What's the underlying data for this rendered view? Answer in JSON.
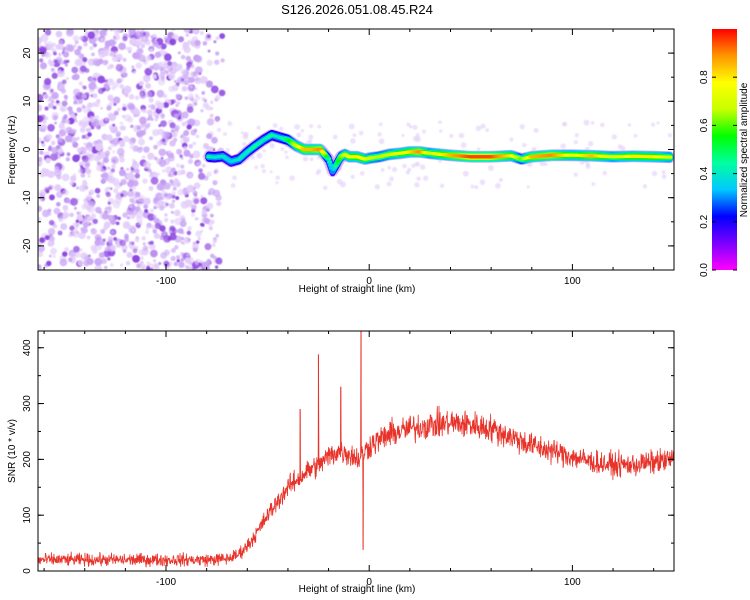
{
  "page": {
    "title": "S126.2026.051.08.45.R24"
  },
  "colors": {
    "snr_line": "#e8332a",
    "axis": "#000000",
    "scatter_light": "#e3cdfa",
    "scatter_mid": "#c9a6f5",
    "scatter_dark": "#8d46e0",
    "colorbar_stops": [
      "#ff00ff",
      "#7a00ff",
      "#0000ff",
      "#00c8ff",
      "#00ffa0",
      "#00ff00",
      "#c8ff00",
      "#ffff00",
      "#ff9600",
      "#ff0000"
    ]
  },
  "chart_data": [
    {
      "type": "heatmap",
      "name": "spectrum",
      "xlabel": "Height of straight line (km)",
      "ylabel": "Frequency (Hz)",
      "xlim": [
        -163,
        150
      ],
      "ylim": [
        -25,
        25
      ],
      "xticks": [
        {
          "value": -100,
          "label": "-100"
        },
        {
          "value": 0,
          "label": "0"
        },
        {
          "value": 100,
          "label": "100"
        }
      ],
      "yticks": [
        {
          "value": -20,
          "label": "-20"
        },
        {
          "value": -10,
          "label": "-10"
        },
        {
          "value": 0,
          "label": "0"
        },
        {
          "value": 10,
          "label": "10"
        },
        {
          "value": 20,
          "label": "20"
        }
      ],
      "noise_region_x": [
        -163,
        -72
      ],
      "ridge": {
        "x": [
          -79,
          -76,
          -72,
          -68,
          -64,
          -60,
          -56,
          -52,
          -48,
          -44,
          -40,
          -36,
          -32,
          -28,
          -24,
          -20,
          -18,
          -16,
          -14,
          -12,
          -10,
          -6,
          -2,
          0,
          5,
          10,
          15,
          20,
          25,
          30,
          40,
          50,
          60,
          70,
          75,
          80,
          90,
          100,
          110,
          120,
          130,
          140,
          148
        ],
        "frequency": [
          -1.5,
          -1.6,
          -1.4,
          -2.5,
          -2.0,
          -0.5,
          0.8,
          2.0,
          3.0,
          2.5,
          2.0,
          0.8,
          0.0,
          0.0,
          0.0,
          -2.0,
          -4.5,
          -3.0,
          -1.5,
          -1.0,
          -1.5,
          -1.5,
          -2.0,
          -1.8,
          -1.5,
          -1.0,
          -0.8,
          -0.5,
          -0.5,
          -0.8,
          -1.2,
          -1.5,
          -1.5,
          -1.3,
          -2.0,
          -1.5,
          -1.2,
          -1.2,
          -1.3,
          -1.5,
          -1.4,
          -1.5,
          -1.6
        ],
        "amplitude": [
          0.45,
          0.4,
          0.4,
          0.35,
          0.4,
          0.4,
          0.45,
          0.4,
          0.45,
          0.4,
          0.5,
          0.7,
          0.85,
          0.85,
          0.9,
          0.45,
          0.3,
          0.5,
          0.6,
          0.7,
          0.75,
          0.8,
          0.75,
          0.7,
          0.65,
          0.7,
          0.75,
          0.8,
          0.9,
          0.7,
          0.85,
          0.95,
          0.95,
          0.8,
          0.6,
          0.85,
          0.9,
          0.75,
          0.85,
          0.7,
          0.8,
          0.8,
          0.7
        ]
      }
    },
    {
      "type": "line",
      "name": "snr",
      "xlabel": "Height of straight line (km)",
      "ylabel": "SNR (10 * v/v)",
      "xlim": [
        -163,
        150
      ],
      "ylim": [
        0,
        430
      ],
      "xticks": [
        {
          "value": -100,
          "label": "-100"
        },
        {
          "value": 0,
          "label": "0"
        },
        {
          "value": 100,
          "label": "100"
        }
      ],
      "yticks": [
        {
          "value": 0,
          "label": "0"
        },
        {
          "value": 100,
          "label": "100"
        },
        {
          "value": 200,
          "label": "200"
        },
        {
          "value": 300,
          "label": "300"
        },
        {
          "value": 400,
          "label": "400"
        }
      ],
      "trend": {
        "x": [
          -163,
          -80,
          -70,
          -65,
          -60,
          -55,
          -50,
          -45,
          -40,
          -35,
          -30,
          -25,
          -20,
          -15,
          -10,
          -5,
          0,
          10,
          20,
          30,
          40,
          50,
          60,
          70,
          80,
          90,
          100,
          110,
          120,
          130,
          140,
          150
        ],
        "y": [
          20,
          20,
          22,
          28,
          45,
          70,
          100,
          125,
          150,
          165,
          180,
          190,
          205,
          215,
          210,
          200,
          225,
          245,
          255,
          262,
          265,
          262,
          255,
          240,
          225,
          215,
          205,
          195,
          190,
          190,
          195,
          200
        ]
      },
      "noise_amplitude": 18,
      "spikes": [
        {
          "x": -34,
          "y": 290
        },
        {
          "x": -25,
          "y": 388
        },
        {
          "x": -14,
          "y": 330
        },
        {
          "x": -4,
          "y": 430
        },
        {
          "x": -3,
          "y": 38
        }
      ]
    }
  ],
  "colorbar": {
    "label": "Normalized spectral amplitude",
    "range": [
      0,
      1
    ],
    "ticks": [
      {
        "value": 0.0,
        "label": "0.0"
      },
      {
        "value": 0.2,
        "label": "0.2"
      },
      {
        "value": 0.4,
        "label": "0.4"
      },
      {
        "value": 0.6,
        "label": "0.6"
      },
      {
        "value": 0.8,
        "label": "0.8"
      }
    ]
  }
}
